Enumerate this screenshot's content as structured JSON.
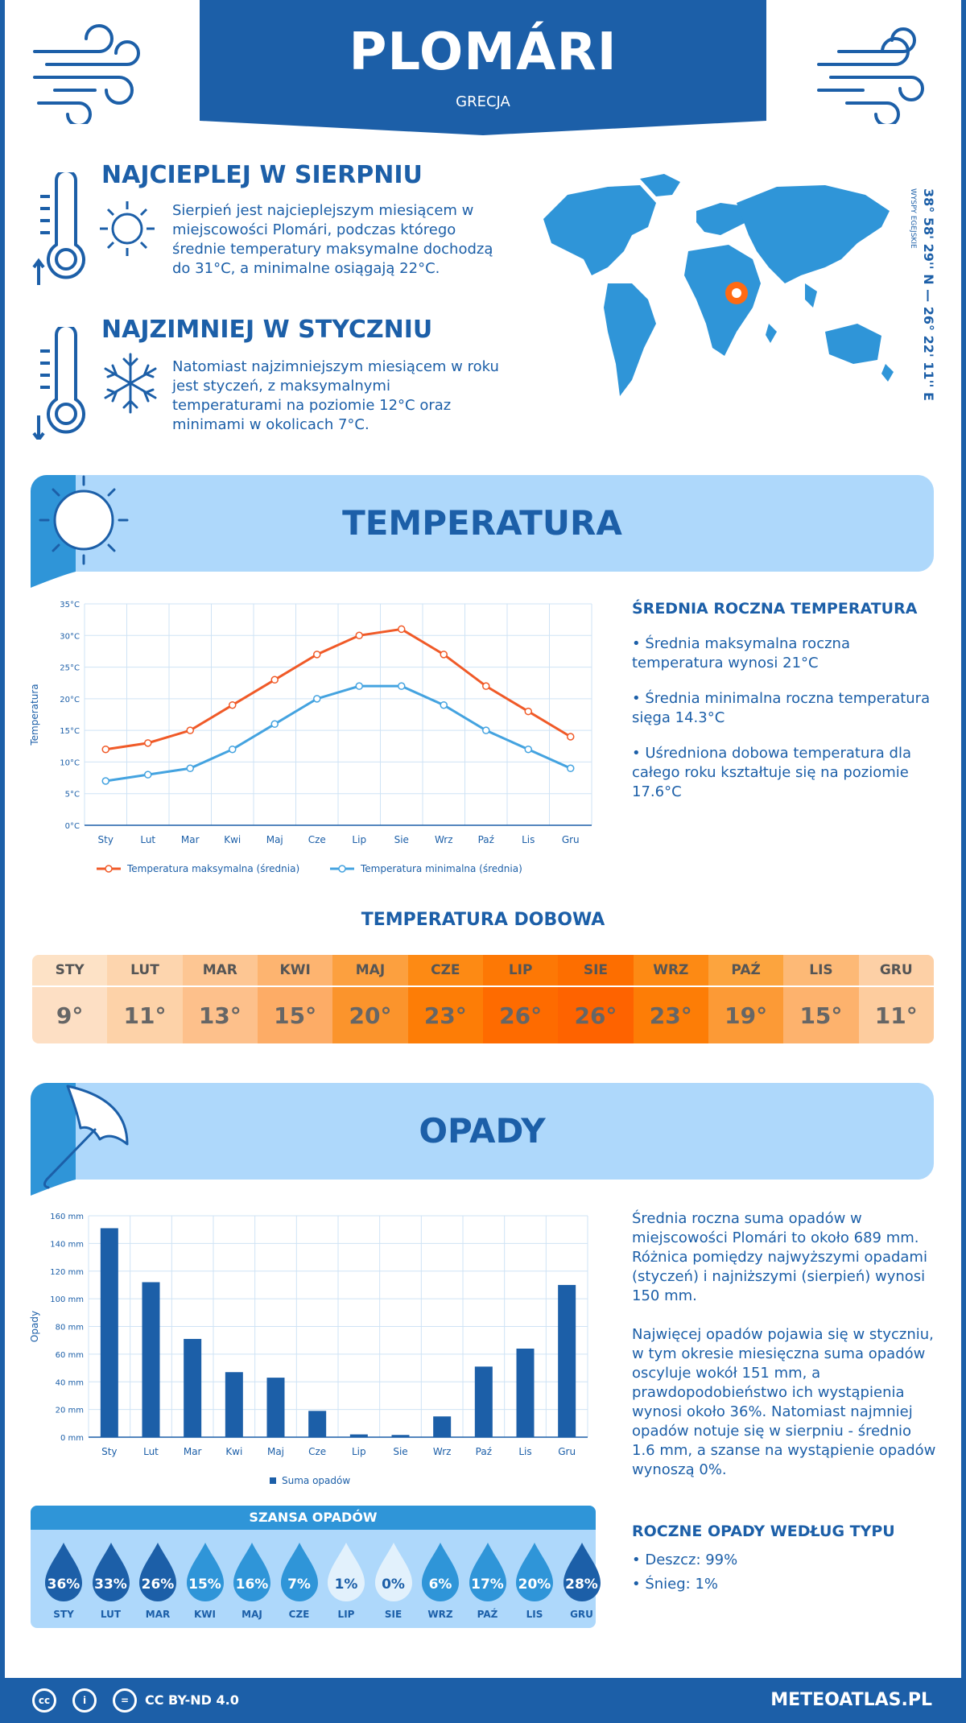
{
  "header": {
    "city": "PLOMÁRI",
    "country": "GRECJA"
  },
  "location": {
    "coordinates": "38° 58' 29'' N — 26° 22' 11'' E",
    "region": "WYSPY EGEJSKIE"
  },
  "hottest": {
    "title": "NAJCIEPLEJ W SIERPNIU",
    "text": "Sierpień jest najcieplejszym miesiącem w miejscowości Plomári, podczas którego średnie temperatury maksymalne dochodzą do 31°C, a minimalne osiągają 22°C."
  },
  "coldest": {
    "title": "NAJZIMNIEJ W STYCZNIU",
    "text": "Natomiast najzimniejszym miesiącem w roku jest styczeń, z maksymalnymi temperaturami na poziomie 12°C oraz minimami w okolicach 7°C."
  },
  "temperature_section": {
    "title": "TEMPERATURA",
    "summary_title": "ŚREDNIA ROCZNA TEMPERATURA",
    "p1": "• Średnia maksymalna roczna temperatura wynosi 21°C",
    "p2": "• Średnia minimalna roczna temperatura sięga 14.3°C",
    "p3": "• Uśredniona dobowa temperatura dla całego roku kształtuje się na poziomie 17.6°C"
  },
  "daily": {
    "title": "TEMPERATURA DOBOWA",
    "months": [
      "STY",
      "LUT",
      "MAR",
      "KWI",
      "MAJ",
      "CZE",
      "LIP",
      "SIE",
      "WRZ",
      "PAŹ",
      "LIS",
      "GRU"
    ],
    "values": [
      "9°",
      "11°",
      "13°",
      "15°",
      "20°",
      "23°",
      "26°",
      "26°",
      "23°",
      "19°",
      "15°",
      "11°"
    ],
    "head_colors": [
      "#fde2c6",
      "#fdd5ae",
      "#fdc693",
      "#fdb470",
      "#fca03f",
      "#fd8a14",
      "#fd7805",
      "#fd6e00",
      "#fd8a14",
      "#fca43e",
      "#fdb976",
      "#fdd0a6"
    ],
    "cell_colors": [
      "#fddfc4",
      "#fdd2a8",
      "#fdc08b",
      "#fdac66",
      "#fb942c",
      "#fd7d06",
      "#fe6b00",
      "#fe6300",
      "#fd7d06",
      "#fc9a36",
      "#fdb26d",
      "#fdcc9e"
    ]
  },
  "precip_section": {
    "title": "OPADY",
    "p1": "Średnia roczna suma opadów w miejscowości Plomári to około 689 mm. Różnica pomiędzy najwyższymi opadami (styczeń) i najniższymi (sierpień) wynosi 150 mm.",
    "p2": "Najwięcej opadów pojawia się w styczniu, w tym okresie miesięczna suma opadów oscyluje wokół 151 mm, a prawdopodobieństwo ich wystąpienia wynosi około 36%. Natomiast najmniej opadów notuje się w sierpniu - średnio 1.6 mm, a szanse na wystąpienie opadów wynoszą 0%.",
    "type_title": "ROCZNE OPADY WEDŁUG TYPU",
    "rain": "• Deszcz: 99%",
    "snow": "• Śnieg: 1%"
  },
  "chance": {
    "title": "SZANSA OPADÓW",
    "months": [
      "STY",
      "LUT",
      "MAR",
      "KWI",
      "MAJ",
      "CZE",
      "LIP",
      "SIE",
      "WRZ",
      "PAŹ",
      "LIS",
      "GRU"
    ],
    "values": [
      "36%",
      "33%",
      "26%",
      "15%",
      "16%",
      "7%",
      "1%",
      "0%",
      "6%",
      "17%",
      "20%",
      "28%"
    ],
    "colors": [
      "#1c5fa8",
      "#1c5fa8",
      "#1c5fa8",
      "#2f95d8",
      "#2f95d8",
      "#2f95d8",
      "#e2f1fc",
      "#e2f1fc",
      "#2f95d8",
      "#2f95d8",
      "#2f95d8",
      "#1c5fa8"
    ]
  },
  "footer": {
    "license": "CC BY-ND 4.0",
    "site": "METEOATLAS.PL"
  },
  "chart_data": [
    {
      "type": "line",
      "categories": [
        "Sty",
        "Lut",
        "Mar",
        "Kwi",
        "Maj",
        "Cze",
        "Lip",
        "Sie",
        "Wrz",
        "Paź",
        "Lis",
        "Gru"
      ],
      "series": [
        {
          "name": "Temperatura maksymalna (średnia)",
          "values": [
            12,
            13,
            15,
            19,
            23,
            27,
            30,
            31,
            27,
            22,
            18,
            14
          ],
          "color": "#f05a28"
        },
        {
          "name": "Temperatura minimalna (średnia)",
          "values": [
            7,
            8,
            9,
            12,
            16,
            20,
            22,
            22,
            19,
            15,
            12,
            9
          ],
          "color": "#44a3e0"
        }
      ],
      "ylabel": "Temperatura",
      "ylim": [
        0,
        35
      ],
      "yticks": [
        "0°C",
        "5°C",
        "10°C",
        "15°C",
        "20°C",
        "25°C",
        "30°C",
        "35°C"
      ],
      "grid": true,
      "legend": "bottom"
    },
    {
      "type": "bar",
      "categories": [
        "Sty",
        "Lut",
        "Mar",
        "Kwi",
        "Maj",
        "Cze",
        "Lip",
        "Sie",
        "Wrz",
        "Paź",
        "Lis",
        "Gru"
      ],
      "series": [
        {
          "name": "Suma opadów",
          "values": [
            151,
            112,
            71,
            47,
            43,
            19,
            2,
            1.6,
            15,
            51,
            64,
            110
          ],
          "color": "#1c5fa8"
        }
      ],
      "ylabel": "Opady",
      "ylim": [
        0,
        160
      ],
      "yticks": [
        "0 mm",
        "20 mm",
        "40 mm",
        "60 mm",
        "80 mm",
        "100 mm",
        "120 mm",
        "140 mm",
        "160 mm"
      ],
      "grid": true,
      "legend": "bottom"
    }
  ]
}
